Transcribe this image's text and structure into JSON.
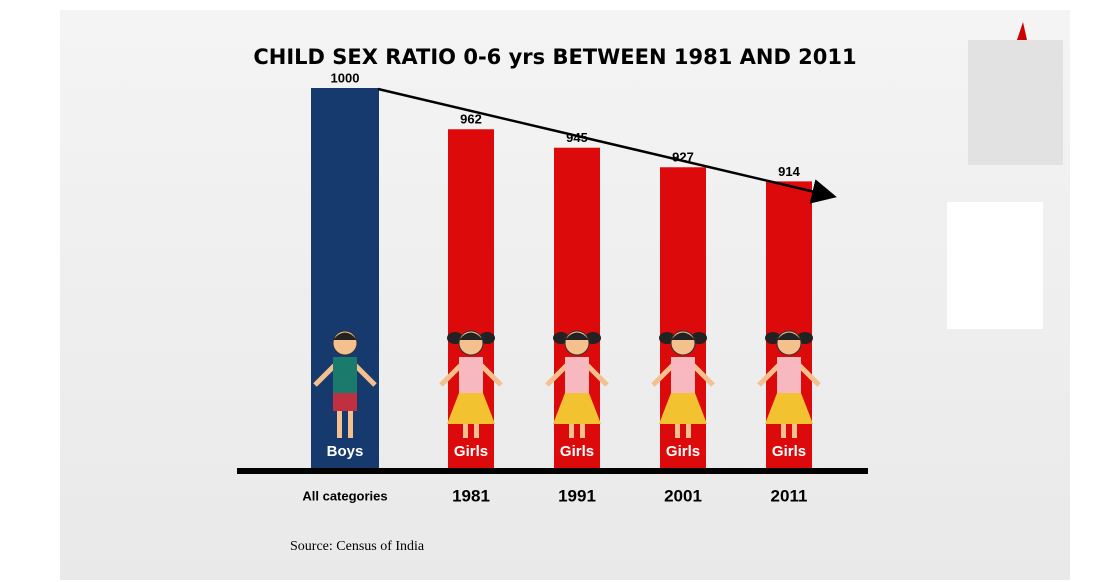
{
  "chart_data": {
    "type": "bar",
    "title": "CHILD SEX RATIO 0-6 yrs BETWEEN 1981 AND 2011",
    "categories": [
      "All categories",
      "1981",
      "1991",
      "2001",
      "2011"
    ],
    "values": [
      1000,
      962,
      945,
      927,
      914
    ],
    "colors": [
      "#163a6e",
      "#dc0a0a",
      "#dc0a0a",
      "#dc0a0a",
      "#dc0a0a"
    ],
    "bar_labels": [
      "Boys",
      "Girls",
      "Girls",
      "Girls",
      "Girls"
    ],
    "ylim": [
      650,
      1000
    ],
    "source": "Source: Census of India"
  }
}
